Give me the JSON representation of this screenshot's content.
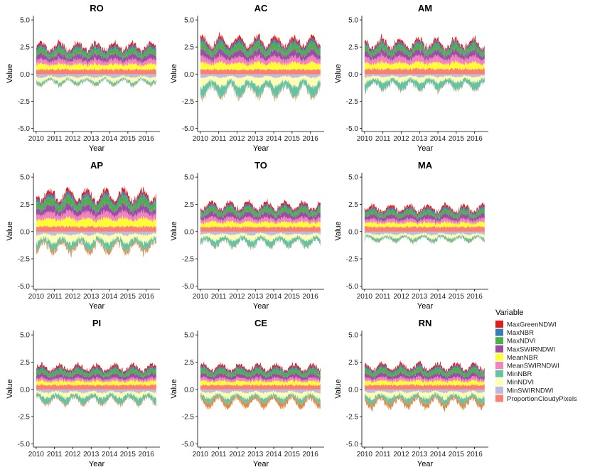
{
  "chart_data": {
    "type": "area",
    "xlabel": "Year",
    "ylabel": "Value",
    "xlim": [
      2009.85,
      2016.75
    ],
    "ylim": [
      -5.3,
      5.4
    ],
    "x_ticks": [
      2010,
      2011,
      2012,
      2013,
      2014,
      2015,
      2016
    ],
    "y_ticks": [
      -5.0,
      -2.5,
      0.0,
      2.5,
      5.0
    ],
    "y_tick_labels": [
      "-5.0",
      "-2.5",
      "0.0",
      "2.5",
      "5.0"
    ],
    "grid": false,
    "legend": {
      "title": "Variable",
      "position": "right",
      "entries": [
        {
          "name": "MaxGreenNDWI",
          "color": "#e41a1c"
        },
        {
          "name": "MaxNBR",
          "color": "#377eb8"
        },
        {
          "name": "MaxNDVI",
          "color": "#4daf4a"
        },
        {
          "name": "MaxSWIRNDWI",
          "color": "#984ea3"
        },
        {
          "name": "MeanNBR",
          "color": "#ffff33"
        },
        {
          "name": "MeanSWIRNDWI",
          "color": "#f781bf"
        },
        {
          "name": "MinNBR",
          "color": "#66c2a5"
        },
        {
          "name": "MinNDVI",
          "color": "#ffffb3"
        },
        {
          "name": "MinSWIRNDWI",
          "color": "#bebada"
        },
        {
          "name": "ProportionCloudyPixels",
          "color": "#fb8072"
        }
      ]
    },
    "panels": [
      {
        "title": "RO",
        "positive_layers": [
          0.45,
          0.35,
          0.42,
          0.4,
          0.22,
          0.2
        ],
        "cloud_fraction": 0.45,
        "negative_layers": [
          -0.28,
          -0.35,
          -0.25,
          -0.05
        ],
        "top_envelope": 3.4,
        "bottom_envelope": -1.3
      },
      {
        "title": "AC",
        "positive_layers": [
          0.5,
          0.4,
          0.45,
          0.45,
          0.22,
          0.22
        ],
        "cloud_fraction": 0.45,
        "negative_layers": [
          -0.3,
          -0.7,
          -0.8,
          -0.1
        ],
        "top_envelope": 3.8,
        "bottom_envelope": -2.8
      },
      {
        "title": "AM",
        "positive_layers": [
          0.5,
          0.45,
          0.45,
          0.4,
          0.2,
          0.2
        ],
        "cloud_fraction": 0.5,
        "negative_layers": [
          -0.25,
          -0.4,
          -0.6,
          -0.05
        ],
        "top_envelope": 3.5,
        "bottom_envelope": -1.8
      },
      {
        "title": "AP",
        "positive_layers": [
          0.55,
          0.42,
          0.45,
          0.48,
          0.22,
          0.22
        ],
        "cloud_fraction": 0.48,
        "negative_layers": [
          -0.3,
          -0.6,
          -0.55,
          -0.25
        ],
        "top_envelope": 4.0,
        "bottom_envelope": -2.5
      },
      {
        "title": "TO",
        "positive_layers": [
          0.45,
          0.35,
          0.42,
          0.4,
          0.2,
          0.2
        ],
        "cloud_fraction": 0.45,
        "negative_layers": [
          -0.28,
          -0.45,
          -0.5,
          -0.05
        ],
        "top_envelope": 3.2,
        "bottom_envelope": -1.8
      },
      {
        "title": "MA",
        "positive_layers": [
          0.4,
          0.3,
          0.4,
          0.35,
          0.2,
          0.2
        ],
        "cloud_fraction": 0.45,
        "negative_layers": [
          -0.25,
          -0.3,
          -0.25,
          -0.05
        ],
        "top_envelope": 3.0,
        "bottom_envelope": -1.2
      },
      {
        "title": "PI",
        "positive_layers": [
          0.38,
          0.25,
          0.38,
          0.38,
          0.2,
          0.2
        ],
        "cloud_fraction": 0.42,
        "negative_layers": [
          -0.28,
          -0.4,
          -0.45,
          -0.1
        ],
        "top_envelope": 2.9,
        "bottom_envelope": -1.7
      },
      {
        "title": "CE",
        "positive_layers": [
          0.4,
          0.28,
          0.38,
          0.4,
          0.2,
          0.2
        ],
        "cloud_fraction": 0.42,
        "negative_layers": [
          -0.28,
          -0.45,
          -0.35,
          -0.4
        ],
        "top_envelope": 2.9,
        "bottom_envelope": -1.7
      },
      {
        "title": "RN",
        "positive_layers": [
          0.4,
          0.28,
          0.38,
          0.4,
          0.2,
          0.2
        ],
        "cloud_fraction": 0.42,
        "negative_layers": [
          -0.28,
          -0.45,
          -0.4,
          -0.35
        ],
        "top_envelope": 3.0,
        "bottom_envelope": -1.9
      }
    ]
  }
}
